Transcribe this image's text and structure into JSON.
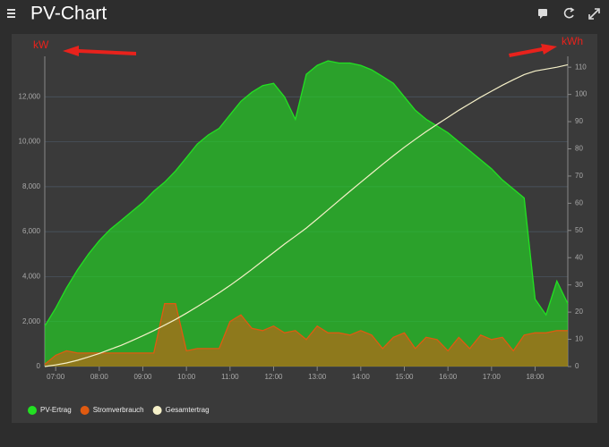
{
  "header": {
    "title": "PV-Chart"
  },
  "chart_data": {
    "type": "area",
    "annotations": [
      "kW",
      "kWh"
    ],
    "xlim": [
      6.75,
      18.75
    ],
    "xticks": [
      {
        "value": 7,
        "label": "07:00"
      },
      {
        "value": 8,
        "label": "08:00"
      },
      {
        "value": 9,
        "label": "09:00"
      },
      {
        "value": 10,
        "label": "10:00"
      },
      {
        "value": 11,
        "label": "11:00"
      },
      {
        "value": 12,
        "label": "12:00"
      },
      {
        "value": 13,
        "label": "13:00"
      },
      {
        "value": 14,
        "label": "14:00"
      },
      {
        "value": 15,
        "label": "15:00"
      },
      {
        "value": 16,
        "label": "16:00"
      },
      {
        "value": 17,
        "label": "17:00"
      },
      {
        "value": 18,
        "label": "18:00"
      }
    ],
    "ylim": [
      0,
      13800
    ],
    "yticks": [
      0,
      {
        "value": 2000,
        "label": "2,000"
      },
      {
        "value": 4000,
        "label": "4,000"
      },
      {
        "value": 6000,
        "label": "6,000"
      },
      {
        "value": 8000,
        "label": "8,000"
      },
      {
        "value": 10000,
        "label": "10,000"
      },
      {
        "value": 12000,
        "label": "12,000"
      }
    ],
    "y2lim": [
      0,
      114
    ],
    "y2ticks": [
      0,
      10,
      20,
      30,
      40,
      50,
      60,
      70,
      80,
      90,
      100,
      110
    ],
    "grid": true,
    "legend": "bottom-left",
    "x": [
      6.75,
      7,
      7.25,
      7.5,
      7.75,
      8,
      8.25,
      8.5,
      8.75,
      9,
      9.25,
      9.5,
      9.75,
      10,
      10.25,
      10.5,
      10.75,
      11,
      11.25,
      11.5,
      11.75,
      12,
      12.25,
      12.5,
      12.75,
      13,
      13.25,
      13.5,
      13.75,
      14,
      14.25,
      14.5,
      14.75,
      15,
      15.25,
      15.5,
      15.75,
      16,
      16.25,
      16.5,
      16.75,
      17,
      17.25,
      17.5,
      17.75,
      18,
      18.25,
      18.5,
      18.75
    ],
    "series": [
      {
        "name": "PV-Ertrag",
        "color": "#22e022",
        "kind": "area",
        "values": [
          1800,
          2600,
          3500,
          4300,
          5000,
          5600,
          6100,
          6500,
          6900,
          7300,
          7800,
          8200,
          8700,
          9300,
          9900,
          10300,
          10600,
          11200,
          11800,
          12200,
          12500,
          12600,
          12000,
          11000,
          13000,
          13400,
          13600,
          13500,
          13500,
          13400,
          13200,
          12900,
          12600,
          12000,
          11400,
          11000,
          10700,
          10400,
          10000,
          9600,
          9200,
          8800,
          8300,
          7900,
          7500,
          3000,
          2300,
          3800,
          2800
        ]
      },
      {
        "name": "Stromverbrauch",
        "color": "#e05a10",
        "kind": "area",
        "values": [
          100,
          500,
          700,
          600,
          600,
          600,
          600,
          600,
          600,
          600,
          600,
          2800,
          2800,
          700,
          800,
          800,
          800,
          2000,
          2300,
          1700,
          1600,
          1800,
          1500,
          1600,
          1200,
          1800,
          1500,
          1500,
          1400,
          1600,
          1400,
          800,
          1300,
          1500,
          800,
          1300,
          1200,
          700,
          1300,
          800,
          1400,
          1200,
          1300,
          700,
          1400,
          1500,
          1500,
          1600,
          1600
        ]
      },
      {
        "name": "Gesamtertrag",
        "color": "#f5f0c8",
        "kind": "line",
        "axis": "y2",
        "values": [
          0,
          0.6,
          1.3,
          2.3,
          3.5,
          4.8,
          6.3,
          7.8,
          9.5,
          11.3,
          13.2,
          15.2,
          17.3,
          19.6,
          22.0,
          24.5,
          27.1,
          29.8,
          32.7,
          35.7,
          38.8,
          41.9,
          45.0,
          47.9,
          50.9,
          54.2,
          57.6,
          61.0,
          64.4,
          67.7,
          71.0,
          74.3,
          77.5,
          80.6,
          83.5,
          86.3,
          89.0,
          91.6,
          94.2,
          96.6,
          99.0,
          101.2,
          103.4,
          105.4,
          107.3,
          108.6,
          109.3,
          110.0,
          110.9
        ]
      }
    ]
  }
}
